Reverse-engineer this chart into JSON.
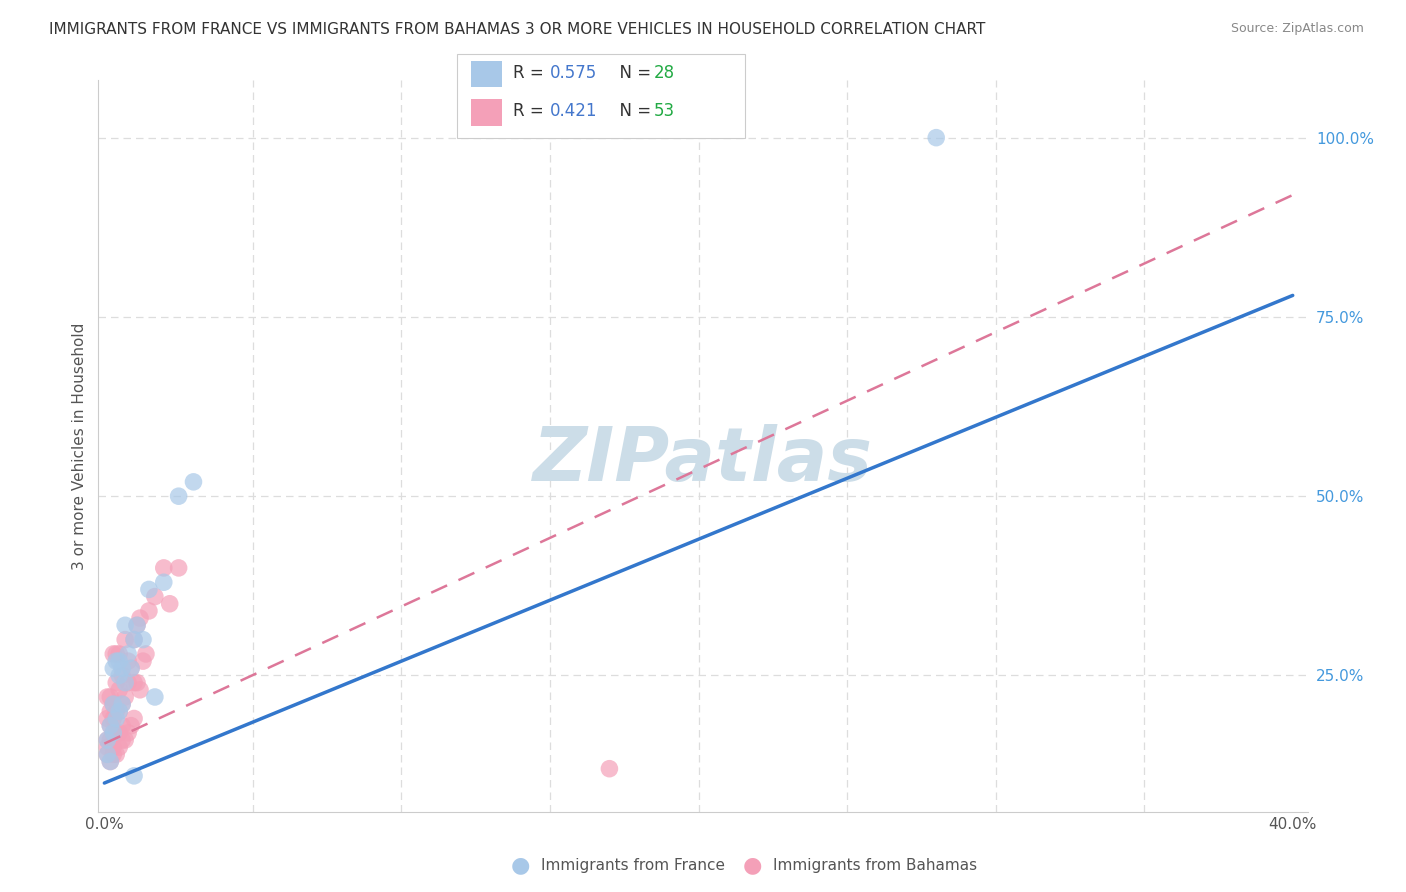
{
  "title": "IMMIGRANTS FROM FRANCE VS IMMIGRANTS FROM BAHAMAS 3 OR MORE VEHICLES IN HOUSEHOLD CORRELATION CHART",
  "source": "Source: ZipAtlas.com",
  "ylabel": "3 or more Vehicles in Household",
  "x_label_france": "Immigrants from France",
  "x_label_bahamas": "Immigrants from Bahamas",
  "xlim": [
    -0.002,
    0.405
  ],
  "ylim": [
    0.06,
    1.08
  ],
  "xtick_vals": [
    0.0,
    0.05,
    0.1,
    0.15,
    0.2,
    0.25,
    0.3,
    0.35,
    0.4
  ],
  "xticklabels": [
    "0.0%",
    "",
    "",
    "",
    "",
    "",
    "",
    "",
    "40.0%"
  ],
  "yticks_right": [
    0.25,
    0.5,
    0.75,
    1.0
  ],
  "ytick_labels_right": [
    "25.0%",
    "50.0%",
    "75.0%",
    "100.0%"
  ],
  "france_R": 0.575,
  "france_N": 28,
  "bahamas_R": 0.421,
  "bahamas_N": 53,
  "france_color": "#a8c8e8",
  "bahamas_color": "#f4a0b8",
  "france_line_color": "#3377cc",
  "bahamas_line_color": "#dd7799",
  "legend_R_color": "#4477cc",
  "legend_N_color": "#22aa44",
  "watermark": "ZIPatlas",
  "watermark_color": "#ccdde8",
  "france_line_x0": 0.0,
  "france_line_y0": 0.1,
  "france_line_x1": 0.4,
  "france_line_y1": 0.78,
  "bahamas_line_x0": 0.0,
  "bahamas_line_y0": 0.155,
  "bahamas_line_x1": 0.4,
  "bahamas_line_y1": 0.92,
  "france_scatter_x": [
    0.001,
    0.001,
    0.002,
    0.002,
    0.003,
    0.003,
    0.003,
    0.004,
    0.004,
    0.005,
    0.005,
    0.005,
    0.006,
    0.006,
    0.007,
    0.007,
    0.008,
    0.009,
    0.01,
    0.01,
    0.011,
    0.013,
    0.015,
    0.017,
    0.02,
    0.025,
    0.03,
    0.28
  ],
  "france_scatter_y": [
    0.14,
    0.16,
    0.13,
    0.18,
    0.17,
    0.21,
    0.26,
    0.19,
    0.27,
    0.2,
    0.25,
    0.27,
    0.21,
    0.26,
    0.24,
    0.32,
    0.28,
    0.26,
    0.3,
    0.11,
    0.32,
    0.3,
    0.37,
    0.22,
    0.38,
    0.5,
    0.52,
    1.0
  ],
  "bahamas_scatter_x": [
    0.001,
    0.001,
    0.001,
    0.001,
    0.001,
    0.002,
    0.002,
    0.002,
    0.002,
    0.002,
    0.003,
    0.003,
    0.003,
    0.003,
    0.003,
    0.003,
    0.004,
    0.004,
    0.004,
    0.004,
    0.004,
    0.005,
    0.005,
    0.005,
    0.005,
    0.005,
    0.006,
    0.006,
    0.006,
    0.006,
    0.007,
    0.007,
    0.007,
    0.008,
    0.008,
    0.008,
    0.009,
    0.009,
    0.01,
    0.01,
    0.01,
    0.011,
    0.011,
    0.012,
    0.012,
    0.013,
    0.014,
    0.015,
    0.017,
    0.02,
    0.022,
    0.025,
    0.17
  ],
  "bahamas_scatter_y": [
    0.14,
    0.15,
    0.16,
    0.19,
    0.22,
    0.13,
    0.16,
    0.18,
    0.2,
    0.22,
    0.14,
    0.15,
    0.17,
    0.19,
    0.21,
    0.28,
    0.14,
    0.17,
    0.2,
    0.24,
    0.28,
    0.15,
    0.17,
    0.2,
    0.23,
    0.28,
    0.16,
    0.18,
    0.21,
    0.25,
    0.16,
    0.22,
    0.3,
    0.17,
    0.24,
    0.27,
    0.18,
    0.26,
    0.19,
    0.24,
    0.3,
    0.24,
    0.32,
    0.23,
    0.33,
    0.27,
    0.28,
    0.34,
    0.36,
    0.4,
    0.35,
    0.4,
    0.12
  ],
  "background_color": "#ffffff",
  "grid_color": "#dddddd",
  "grid_linestyle": "--"
}
